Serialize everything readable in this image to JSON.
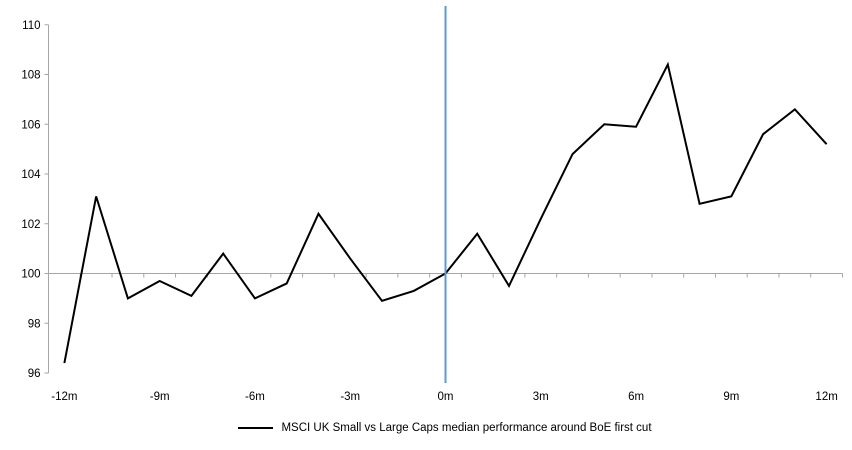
{
  "chart_data": {
    "type": "line",
    "title": "",
    "legend": "MSCI UK Small vs Large Caps median performance around BoE first cut",
    "xlabel": "",
    "ylabel": "",
    "x": [
      -12,
      -11,
      -10,
      -9,
      -8,
      -7,
      -6,
      -5,
      -4,
      -3,
      -2,
      -1,
      0,
      1,
      2,
      3,
      4,
      5,
      6,
      7,
      8,
      9,
      10,
      11,
      12
    ],
    "series": [
      {
        "name": "MSCI UK Small vs Large Caps median performance around BoE first cut",
        "color": "#000000",
        "values": [
          96.4,
          103.1,
          99.0,
          99.7,
          99.1,
          100.8,
          99.0,
          99.6,
          102.4,
          100.6,
          98.9,
          99.3,
          100.0,
          101.6,
          99.5,
          102.2,
          104.8,
          106.0,
          105.9,
          108.4,
          102.8,
          103.1,
          105.6,
          106.6,
          105.2
        ]
      }
    ],
    "x_ticks": [
      {
        "month": -12,
        "label": "-12m"
      },
      {
        "month": -9,
        "label": "-9m"
      },
      {
        "month": -6,
        "label": "-6m"
      },
      {
        "month": -3,
        "label": "-3m"
      },
      {
        "month": 0,
        "label": "0m"
      },
      {
        "month": 3,
        "label": "3m"
      },
      {
        "month": 6,
        "label": "6m"
      },
      {
        "month": 9,
        "label": "9m"
      },
      {
        "month": 12,
        "label": "12m"
      }
    ],
    "y_ticks": [
      96,
      98,
      100,
      102,
      104,
      106,
      108,
      110
    ],
    "ylim": [
      96,
      110
    ],
    "axis_crosses_at": 100,
    "event_line_x": 0,
    "colors": {
      "series": "#000000",
      "axis": "#A6A6A6",
      "event_line": "#5B9BD5",
      "text": "#000000"
    },
    "grid": "off",
    "legend_position": "bottom"
  }
}
